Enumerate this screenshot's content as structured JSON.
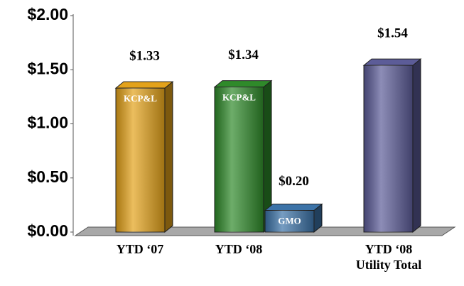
{
  "chart_data": {
    "type": "bar3d",
    "categories": [
      "YTD ‘07",
      "YTD ‘08",
      "YTD ‘08 Utility Total"
    ],
    "series": [
      {
        "name": "KCP&L",
        "colors": [
          "#e3a21a",
          "#2f8a2a",
          null
        ],
        "values": [
          1.33,
          1.34,
          null
        ],
        "value_labels": [
          "$1.33",
          "$1.34",
          null
        ]
      },
      {
        "name": "GMO",
        "colors": [
          null,
          "#3c73a8",
          null
        ],
        "values": [
          null,
          0.2,
          null
        ],
        "value_labels": [
          null,
          "$0.20",
          null
        ]
      },
      {
        "colors": [
          null,
          null,
          "#5c5c98"
        ],
        "values": [
          null,
          null,
          1.54
        ],
        "value_labels": [
          null,
          null,
          "$1.54"
        ]
      }
    ],
    "ylim": [
      0,
      2
    ],
    "yticks": [
      {
        "value": 0,
        "label": "$0.00"
      },
      {
        "value": 0.5,
        "label": "$0.50"
      },
      {
        "value": 1,
        "label": "$1.00"
      },
      {
        "value": 1.5,
        "label": "$1.50"
      },
      {
        "value": 2,
        "label": "$2.00"
      }
    ]
  }
}
